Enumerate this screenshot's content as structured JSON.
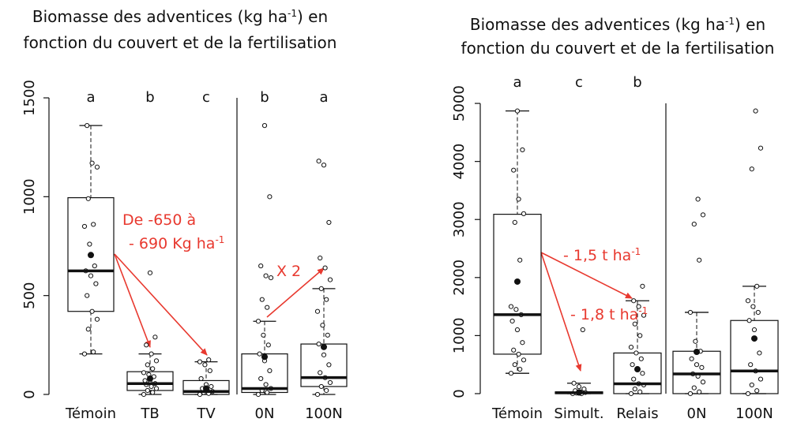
{
  "chart_data": [
    {
      "type": "box",
      "title": [
        [
          "Biomasse des adventices (kg ha",
          "-1",
          ") en"
        ],
        [
          "fonction du couvert et de la fertilisation"
        ]
      ],
      "categories": [
        "Témoin",
        "TB",
        "TV",
        "0N",
        "100N"
      ],
      "letters": [
        "a",
        "b",
        "c",
        "b",
        "a"
      ],
      "groups": [
        {
          "min": 205,
          "q1": 420,
          "median": 625,
          "q3": 995,
          "max": 1360,
          "mean": 705,
          "points": [
            205,
            215,
            330,
            380,
            420,
            500,
            560,
            600,
            625,
            650,
            760,
            850,
            860,
            990,
            1150,
            1170,
            1360
          ]
        },
        {
          "min": 0,
          "q1": 20,
          "median": 55,
          "q3": 115,
          "max": 205,
          "mean": 80,
          "points": [
            0,
            10,
            20,
            30,
            40,
            50,
            55,
            60,
            70,
            90,
            100,
            110,
            130,
            150,
            170,
            205,
            250,
            290,
            615
          ]
        },
        {
          "min": 0,
          "q1": 0,
          "median": 15,
          "q3": 70,
          "max": 165,
          "mean": 30,
          "points": [
            0,
            5,
            10,
            15,
            20,
            30,
            40,
            50,
            80,
            120,
            150,
            165,
            175
          ]
        },
        {
          "min": 0,
          "q1": 10,
          "median": 30,
          "q3": 205,
          "max": 370,
          "mean": 190,
          "points": [
            0,
            10,
            20,
            30,
            50,
            80,
            120,
            170,
            205,
            250,
            300,
            370,
            440,
            480,
            590,
            600,
            650,
            1000,
            1360
          ]
        },
        {
          "min": 0,
          "q1": 40,
          "median": 85,
          "q3": 255,
          "max": 535,
          "mean": 240,
          "points": [
            0,
            20,
            40,
            60,
            85,
            110,
            150,
            200,
            255,
            300,
            350,
            420,
            480,
            535,
            580,
            640,
            690,
            870,
            1160,
            1180
          ]
        }
      ],
      "annotations": [
        [
          "De -650 à"
        ],
        [
          "- 690 Kg ha",
          "-1"
        ],
        [
          "X 2"
        ]
      ],
      "ylim": [
        -40,
        1560
      ],
      "yticks": [
        0,
        500,
        1000,
        1500
      ],
      "color": "#e8392f"
    },
    {
      "type": "box",
      "title": [
        [
          "Biomasse des adventices (kg ha",
          "-1",
          ") en"
        ],
        [
          "fonction du couvert et de la fertilisation"
        ]
      ],
      "categories": [
        "Témoin",
        "Simult.",
        "Relais",
        "0N",
        "100N"
      ],
      "letters": [
        "a",
        "c",
        "b",
        null,
        null
      ],
      "groups": [
        {
          "min": 350,
          "q1": 680,
          "median": 1360,
          "q3": 3090,
          "max": 4870,
          "mean": 1930,
          "points": [
            350,
            420,
            500,
            580,
            680,
            750,
            880,
            1100,
            1250,
            1360,
            1450,
            1500,
            2300,
            2950,
            3100,
            3350,
            3850,
            4200,
            4870
          ]
        },
        {
          "min": 0,
          "q1": 0,
          "median": 15,
          "q3": 30,
          "max": 180,
          "mean": 20,
          "points": [
            0,
            0,
            10,
            20,
            30,
            50,
            80,
            120,
            180,
            1100
          ]
        },
        {
          "min": 0,
          "q1": 0,
          "median": 170,
          "q3": 700,
          "max": 1600,
          "mean": 420,
          "points": [
            0,
            30,
            80,
            150,
            170,
            250,
            350,
            420,
            500,
            600,
            700,
            800,
            1000,
            1200,
            1350,
            1500,
            1600,
            1850
          ]
        },
        {
          "min": 0,
          "q1": 0,
          "median": 340,
          "q3": 730,
          "max": 1400,
          "mean": 720,
          "points": [
            0,
            30,
            100,
            200,
            300,
            340,
            450,
            500,
            600,
            730,
            900,
            1400,
            2300,
            2920,
            3080,
            3350
          ]
        },
        {
          "min": 0,
          "q1": 0,
          "median": 390,
          "q3": 1260,
          "max": 1850,
          "mean": 950,
          "points": [
            0,
            50,
            150,
            250,
            390,
            500,
            700,
            1100,
            1260,
            1400,
            1500,
            1600,
            1850,
            3870,
            4230,
            4870
          ]
        }
      ],
      "annotations": [
        [
          "- 1,5 t ha",
          "-1"
        ],
        [
          "- 1,8 t ha",
          "-1"
        ]
      ],
      "ylim": [
        -150,
        5300
      ],
      "yticks": [
        0,
        1000,
        2000,
        3000,
        4000,
        5000
      ],
      "color": "#e8392f"
    }
  ]
}
